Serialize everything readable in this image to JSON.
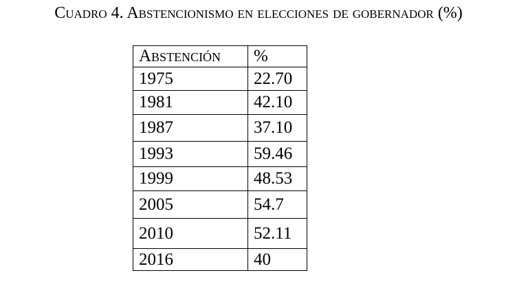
{
  "header": {
    "title": "Cuadro 4. Abstencionismo en elecciones de gobernador (%)"
  },
  "table": {
    "columns": [
      "Abstención",
      "%"
    ],
    "rows": [
      [
        "1975",
        "22.70"
      ],
      [
        "1981",
        "42.10"
      ],
      [
        "1987",
        "37.10"
      ],
      [
        "1993",
        "59.46"
      ],
      [
        "1999",
        "48.53"
      ],
      [
        "2005",
        "54.7"
      ],
      [
        "2010",
        "52.11"
      ],
      [
        "2016",
        "40"
      ]
    ]
  }
}
